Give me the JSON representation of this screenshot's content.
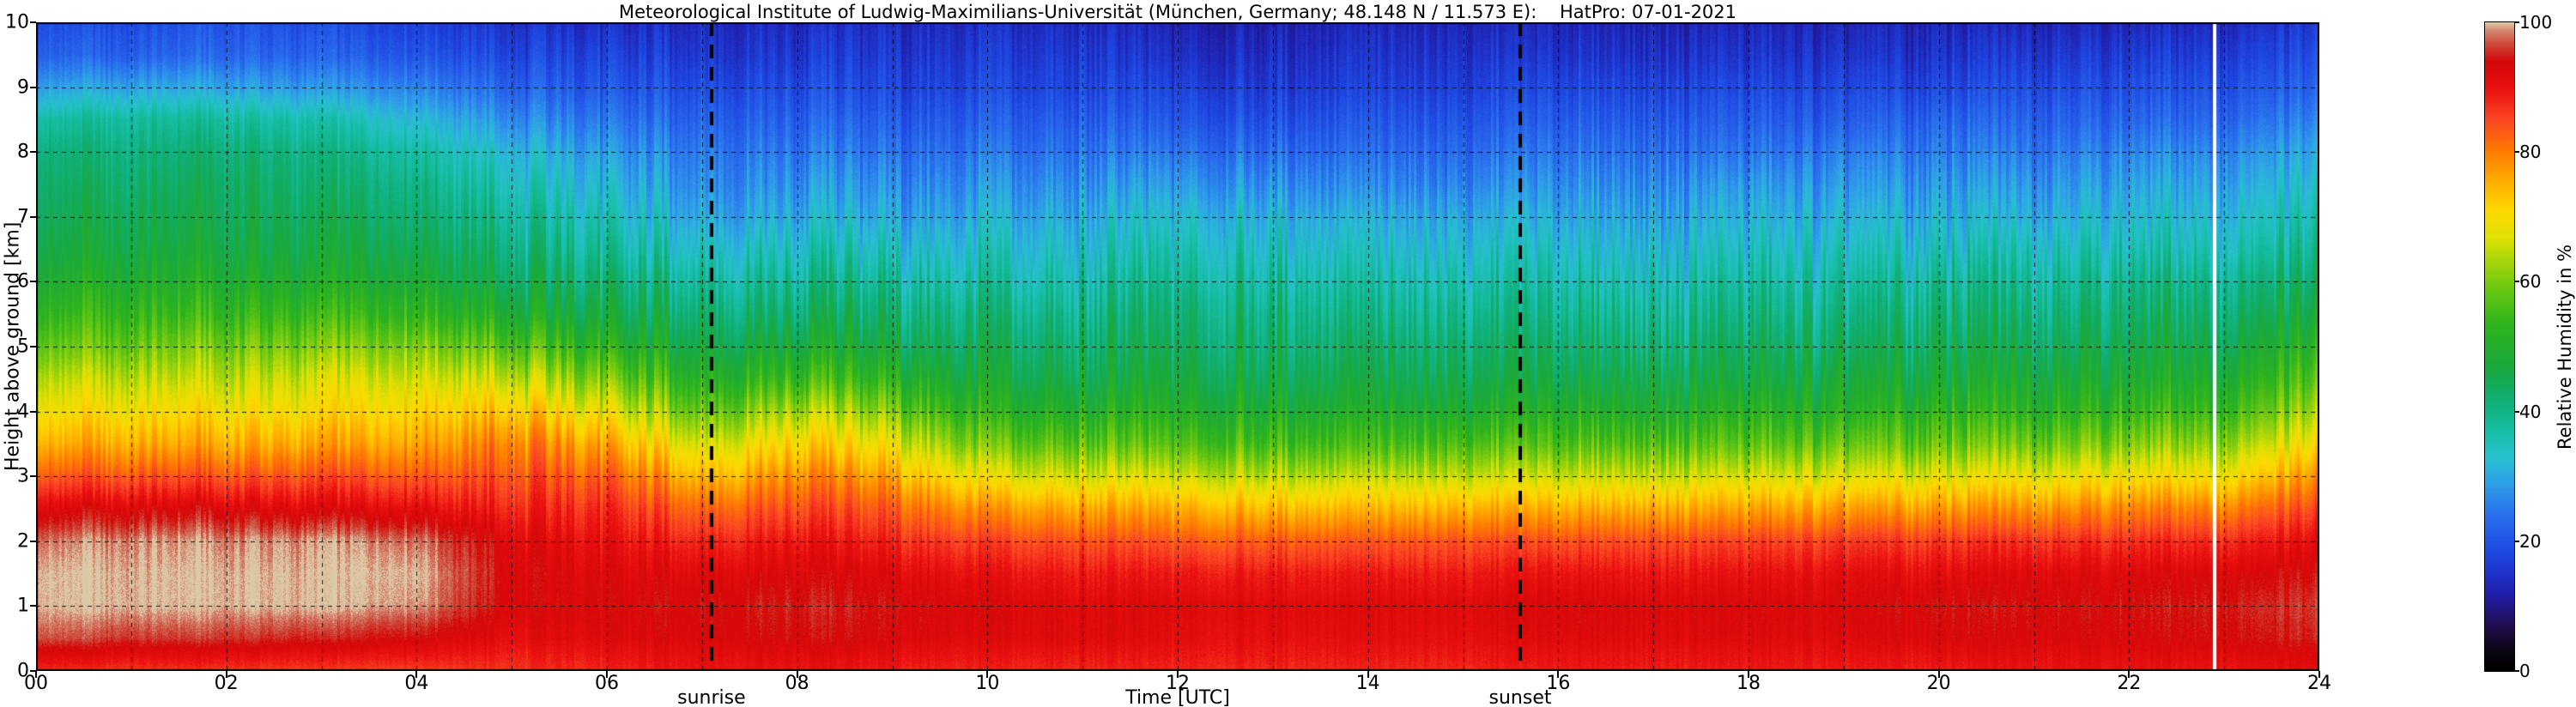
{
  "title": "Meteorological Institute of Ludwig-Maximilians-Universität (München, Germany; 48.148 N / 11.573 E):    HatPro: 07-01-2021",
  "axes": {
    "x": {
      "label": "Time [UTC]",
      "range": [
        0,
        24
      ],
      "ticks": [
        {
          "v": 0,
          "label": "00"
        },
        {
          "v": 2,
          "label": "02"
        },
        {
          "v": 4,
          "label": "04"
        },
        {
          "v": 6,
          "label": "06"
        },
        {
          "v": 8,
          "label": "08"
        },
        {
          "v": 10,
          "label": "10"
        },
        {
          "v": 12,
          "label": "12"
        },
        {
          "v": 14,
          "label": "14"
        },
        {
          "v": 16,
          "label": "16"
        },
        {
          "v": 18,
          "label": "18"
        },
        {
          "v": 20,
          "label": "20"
        },
        {
          "v": 22,
          "label": "22"
        },
        {
          "v": 24,
          "label": "24"
        }
      ]
    },
    "y": {
      "label": "Height above ground [km]",
      "range": [
        0,
        10
      ],
      "ticks": [
        {
          "v": 0,
          "label": "0"
        },
        {
          "v": 1,
          "label": "1"
        },
        {
          "v": 2,
          "label": "2"
        },
        {
          "v": 3,
          "label": "3"
        },
        {
          "v": 4,
          "label": "4"
        },
        {
          "v": 5,
          "label": "5"
        },
        {
          "v": 6,
          "label": "6"
        },
        {
          "v": 7,
          "label": "7"
        },
        {
          "v": 8,
          "label": "8"
        },
        {
          "v": 9,
          "label": "9"
        },
        {
          "v": 10,
          "label": "10"
        }
      ]
    }
  },
  "colorbar": {
    "label": "Relative Humidity in %",
    "range": [
      0,
      100
    ],
    "ticks": [
      {
        "v": 0,
        "label": "0"
      },
      {
        "v": 20,
        "label": "20"
      },
      {
        "v": 40,
        "label": "40"
      },
      {
        "v": 60,
        "label": "60"
      },
      {
        "v": 80,
        "label": "80"
      },
      {
        "v": 100,
        "label": "100"
      }
    ]
  },
  "annotations": {
    "sunrise_label": "sunrise",
    "sunset_label": "sunset",
    "sunrise_utc": 7.1,
    "sunset_utc": 15.6,
    "white_line_utc": 22.9
  },
  "chart_data": {
    "type": "heatmap",
    "title": "Meteorological Institute of Ludwig-Maximilians-Universität (München, Germany; 48.148 N / 11.573 E):    HatPro: 07-01-2021",
    "xlabel": "Time [UTC]",
    "ylabel": "Height above ground [km]",
    "colorbar_label": "Relative Humidity in %",
    "xlim": [
      0,
      24
    ],
    "ylim": [
      0,
      10
    ],
    "clim": [
      0,
      100
    ],
    "grid": {
      "x_interval_hours": 1,
      "y_interval_km": 1,
      "style": "dashed"
    },
    "x_hours": [
      0,
      1,
      2,
      3,
      4,
      5,
      6,
      7,
      8,
      9,
      10,
      11,
      12,
      13,
      14,
      15,
      16,
      17,
      18,
      19,
      20,
      21,
      22,
      23,
      24
    ],
    "y_km": [
      0,
      0.5,
      1,
      1.5,
      2,
      2.5,
      3,
      3.5,
      4,
      4.5,
      5,
      5.5,
      6,
      6.5,
      7,
      7.5,
      8,
      8.5,
      9,
      9.5,
      10
    ],
    "rh_values": [
      [
        88,
        97,
        100,
        100,
        98,
        92,
        83,
        75,
        69,
        64,
        58,
        53,
        49,
        46,
        44,
        43,
        41,
        37,
        29,
        22,
        19
      ],
      [
        87,
        96,
        100,
        100,
        99,
        93,
        84,
        76,
        70,
        65,
        59,
        54,
        50,
        47,
        45,
        43,
        41,
        38,
        30,
        22,
        19
      ],
      [
        87,
        96,
        100,
        100,
        99,
        93,
        84,
        76,
        70,
        65,
        60,
        54,
        50,
        47,
        45,
        44,
        42,
        38,
        30,
        23,
        20
      ],
      [
        86,
        95,
        100,
        100,
        99,
        92,
        84,
        76,
        70,
        66,
        60,
        54,
        49,
        46,
        44,
        42,
        40,
        36,
        28,
        22,
        19
      ],
      [
        86,
        94,
        99,
        100,
        98,
        91,
        83,
        76,
        71,
        66,
        60,
        53,
        48,
        45,
        42,
        40,
        37,
        32,
        26,
        20,
        17
      ],
      [
        87,
        91,
        93,
        93,
        92,
        88,
        84,
        80,
        73,
        65,
        57,
        49,
        44,
        41,
        38,
        35,
        32,
        27,
        22,
        18,
        15
      ],
      [
        88,
        92,
        93,
        92,
        90,
        87,
        82,
        75,
        67,
        59,
        51,
        45,
        41,
        37,
        34,
        31,
        28,
        24,
        20,
        17,
        14
      ],
      [
        90,
        93,
        94,
        92,
        88,
        82,
        74,
        66,
        58,
        51,
        46,
        42,
        38,
        34,
        30,
        27,
        25,
        22,
        19,
        16,
        14
      ],
      [
        90,
        94,
        95,
        93,
        90,
        85,
        79,
        72,
        64,
        55,
        48,
        43,
        39,
        35,
        31,
        28,
        25,
        22,
        19,
        16,
        14
      ],
      [
        89,
        93,
        94,
        92,
        88,
        83,
        76,
        68,
        60,
        52,
        46,
        42,
        38,
        34,
        30,
        27,
        24,
        21,
        18,
        16,
        14
      ],
      [
        88,
        92,
        93,
        90,
        85,
        77,
        67,
        58,
        51,
        46,
        43,
        40,
        36,
        33,
        30,
        27,
        24,
        21,
        18,
        16,
        14
      ],
      [
        88,
        92,
        92,
        89,
        84,
        76,
        66,
        57,
        50,
        45,
        42,
        39,
        36,
        33,
        30,
        27,
        24,
        21,
        18,
        16,
        14
      ],
      [
        88,
        91,
        92,
        89,
        83,
        75,
        65,
        56,
        50,
        46,
        43,
        41,
        38,
        35,
        32,
        28,
        24,
        20,
        17,
        14,
        12
      ],
      [
        88,
        91,
        92,
        89,
        83,
        74,
        64,
        55,
        49,
        45,
        42,
        40,
        37,
        34,
        31,
        27,
        23,
        19,
        16,
        14,
        12
      ],
      [
        88,
        91,
        92,
        89,
        83,
        74,
        64,
        55,
        49,
        45,
        42,
        39,
        36,
        33,
        30,
        26,
        23,
        20,
        17,
        15,
        13
      ],
      [
        88,
        91,
        92,
        89,
        84,
        75,
        65,
        56,
        49,
        45,
        42,
        39,
        36,
        33,
        30,
        26,
        23,
        20,
        17,
        15,
        13
      ],
      [
        89,
        92,
        93,
        90,
        84,
        75,
        65,
        56,
        50,
        45,
        42,
        39,
        36,
        33,
        30,
        27,
        24,
        21,
        18,
        15,
        13
      ],
      [
        89,
        92,
        93,
        90,
        85,
        76,
        66,
        57,
        50,
        46,
        42,
        39,
        36,
        33,
        30,
        27,
        24,
        21,
        18,
        15,
        13
      ],
      [
        89,
        92,
        93,
        90,
        85,
        76,
        66,
        57,
        51,
        46,
        43,
        40,
        37,
        34,
        31,
        28,
        24,
        21,
        18,
        15,
        13
      ],
      [
        89,
        92,
        93,
        91,
        86,
        77,
        67,
        58,
        51,
        47,
        43,
        40,
        37,
        34,
        31,
        28,
        25,
        21,
        18,
        15,
        13
      ],
      [
        89,
        93,
        94,
        91,
        86,
        77,
        67,
        58,
        52,
        47,
        44,
        41,
        38,
        34,
        31,
        28,
        25,
        22,
        18,
        15,
        13
      ],
      [
        90,
        93,
        94,
        92,
        87,
        78,
        68,
        59,
        52,
        48,
        44,
        41,
        38,
        35,
        31,
        28,
        25,
        22,
        19,
        16,
        13
      ],
      [
        90,
        93,
        94,
        92,
        87,
        79,
        69,
        60,
        53,
        48,
        45,
        42,
        39,
        35,
        32,
        29,
        26,
        22,
        19,
        16,
        13
      ],
      [
        90,
        94,
        95,
        93,
        88,
        80,
        70,
        62,
        55,
        50,
        46,
        43,
        40,
        36,
        33,
        30,
        27,
        23,
        20,
        17,
        14
      ],
      [
        91,
        95,
        96,
        94,
        91,
        85,
        78,
        70,
        63,
        57,
        52,
        47,
        43,
        39,
        36,
        33,
        30,
        26,
        22,
        19,
        16
      ]
    ],
    "colormap_stops": [
      [
        0,
        "#000000"
      ],
      [
        3,
        "#0a0512"
      ],
      [
        7,
        "#230d52"
      ],
      [
        12,
        "#1f1fae"
      ],
      [
        18,
        "#1e46e0"
      ],
      [
        24,
        "#2a70ee"
      ],
      [
        29,
        "#2fa0e8"
      ],
      [
        33,
        "#28c0cf"
      ],
      [
        37,
        "#17bda4"
      ],
      [
        42,
        "#0fae72"
      ],
      [
        47,
        "#1ba93c"
      ],
      [
        53,
        "#2cb31e"
      ],
      [
        58,
        "#5fc414"
      ],
      [
        63,
        "#a4d50b"
      ],
      [
        67,
        "#e2e004"
      ],
      [
        71,
        "#fdd900"
      ],
      [
        75,
        "#ffb300"
      ],
      [
        80,
        "#ff7d00"
      ],
      [
        85,
        "#fb4724"
      ],
      [
        90,
        "#ea1010"
      ],
      [
        94,
        "#d40707"
      ],
      [
        97,
        "#cd4f3f"
      ],
      [
        99,
        "#d79078"
      ],
      [
        100,
        "#dcc9a6"
      ]
    ]
  }
}
